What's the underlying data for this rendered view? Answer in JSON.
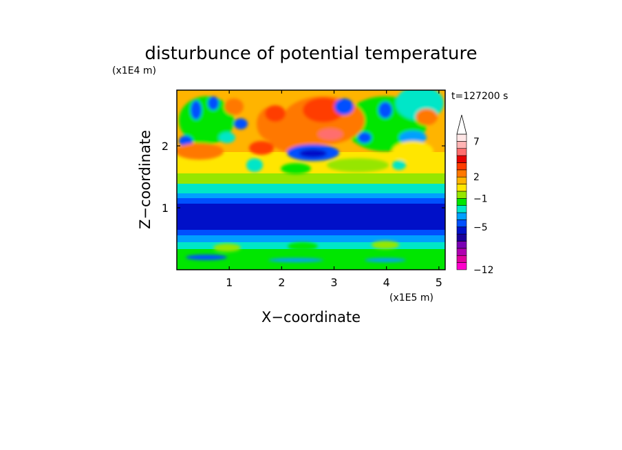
{
  "chart_data": {
    "type": "heatmap",
    "title": "disturbunce of potential temperature",
    "xlabel": "X−coordinate",
    "ylabel": "Z−coordinate",
    "x_unit": "(x1E5 m)",
    "y_unit": "(x1E4 m)",
    "time_label": "t=127200 s",
    "x_ticks": [
      "1",
      "2",
      "3",
      "4",
      "5"
    ],
    "x_tick_values": [
      1,
      2,
      3,
      4,
      5
    ],
    "y_ticks": [
      "1",
      "2"
    ],
    "y_tick_values": [
      1,
      2
    ],
    "xlim": [
      0,
      5.12
    ],
    "ylim": [
      0,
      2.9
    ],
    "colorbar": {
      "levels": [
        -12,
        -11,
        -10,
        -9,
        -7,
        -6,
        -5,
        -4,
        -3,
        -2,
        -1,
        0,
        1,
        2,
        3,
        4,
        5,
        6,
        7,
        8,
        9,
        10
      ],
      "colors": [
        "#ff00cc",
        "#e0009e",
        "#b000b0",
        "#7a00b4",
        "#1a009a",
        "#0010c8",
        "#0050ff",
        "#00a0ff",
        "#00e6c8",
        "#00e600",
        "#96e600",
        "#ffe600",
        "#ffb400",
        "#ff7800",
        "#ff3c00",
        "#e60000",
        "#ff6e6e",
        "#ffb4b4",
        "#ffe6e6"
      ],
      "labels": [
        "−12",
        "−5",
        "−1",
        "2",
        "7"
      ],
      "label_values": [
        -12,
        -5,
        -1,
        2,
        7
      ],
      "extend": "max"
    },
    "layer_profile": [
      {
        "z": [
          0.0,
          0.2
        ],
        "level": "neutral to slightly warm (green / cyan)"
      },
      {
        "z": [
          0.2,
          0.4
        ],
        "level": "−2 to 0 (cyan / light blue)"
      },
      {
        "z": [
          0.4,
          0.85
        ],
        "level": "−5 to −3 (blue)"
      },
      {
        "z": [
          0.85,
          1.25
        ],
        "level": "−6 to −5 (dark blue)"
      },
      {
        "z": [
          1.25,
          1.6
        ],
        "level": "−1 to 1 (cyan / green)"
      },
      {
        "z": [
          1.6,
          2.0
        ],
        "level": "1 to 4 (yellow / orange)"
      },
      {
        "z": [
          2.0,
          2.9
        ],
        "level": "−5 to 7 (wavy, mixed warm and cold cells)"
      }
    ]
  }
}
